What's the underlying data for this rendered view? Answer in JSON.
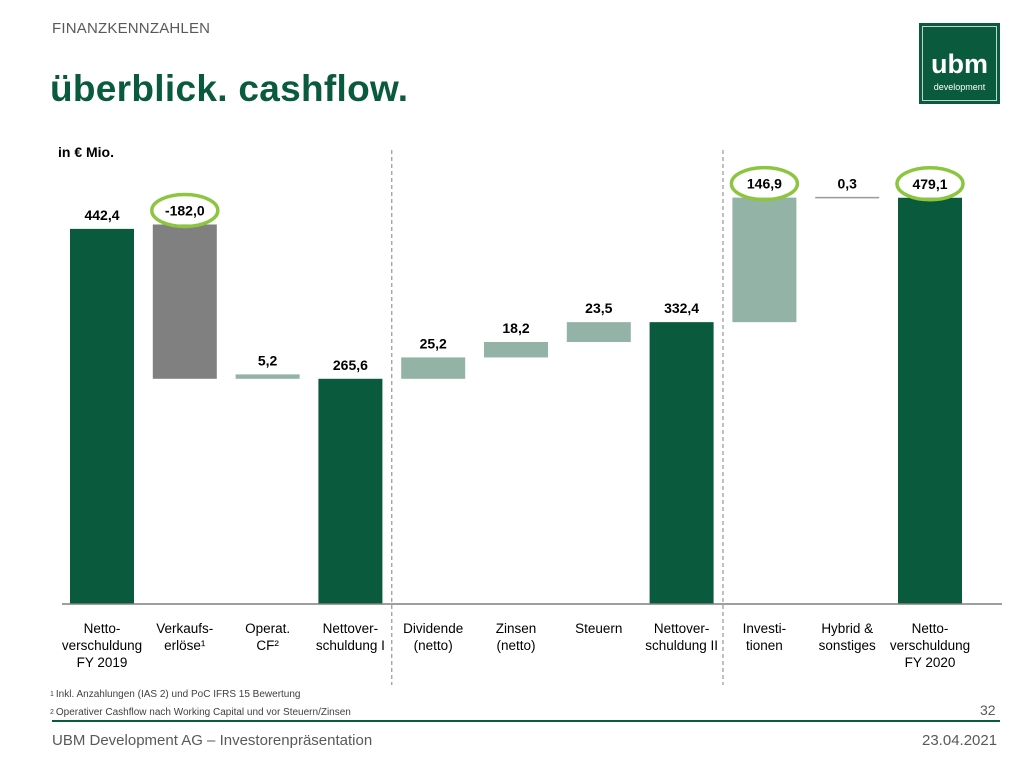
{
  "header": {
    "section_label": "FINANZKENNZAHLEN",
    "title": "überblick. cashflow."
  },
  "logo": {
    "main": "ubm",
    "sub": "development"
  },
  "colors": {
    "brand_green": "#0a5a3e",
    "light_green": "#92b3a6",
    "grey": "#808080",
    "highlight_ring": "#8cc63f",
    "axis": "#7f7f7f",
    "divider": "#808080"
  },
  "chart_data": {
    "type": "bar",
    "subtype": "waterfall",
    "unit": "in € Mio.",
    "ylim": [
      0,
      480
    ],
    "grid": false,
    "legend": "none",
    "group_dividers_after": [
      3,
      7
    ],
    "bars": [
      {
        "category": [
          "Netto-",
          "verschuldung",
          "FY 2019"
        ],
        "label": "442,4",
        "low": 0,
        "high": 442.4,
        "kind": "total",
        "highlight": false
      },
      {
        "category": [
          "Verkaufs-",
          "erlöse¹"
        ],
        "label": "-182,0",
        "low": 265.6,
        "high": 447.6,
        "kind": "negative",
        "highlight": true
      },
      {
        "category": [
          "Operat.",
          "CF²"
        ],
        "label": "5,2",
        "low": 265.6,
        "high": 270.8,
        "kind": "change",
        "highlight": false
      },
      {
        "category": [
          "Nettover-",
          "schuldung I"
        ],
        "label": "265,6",
        "low": 0,
        "high": 265.6,
        "kind": "total",
        "highlight": false
      },
      {
        "category": [
          "Dividende",
          "(netto)"
        ],
        "label": "25,2",
        "low": 265.6,
        "high": 290.8,
        "kind": "change",
        "highlight": false
      },
      {
        "category": [
          "Zinsen",
          "(netto)"
        ],
        "label": "18,2",
        "low": 290.8,
        "high": 309.0,
        "kind": "change",
        "highlight": false
      },
      {
        "category": [
          "Steuern"
        ],
        "label": "23,5",
        "low": 309.0,
        "high": 332.4,
        "kind": "change",
        "highlight": false
      },
      {
        "category": [
          "Nettover-",
          "schuldung II"
        ],
        "label": "332,4",
        "low": 0,
        "high": 332.4,
        "kind": "total",
        "highlight": false
      },
      {
        "category": [
          "Investi-",
          "tionen"
        ],
        "label": "146,9",
        "low": 332.4,
        "high": 479.3,
        "kind": "change",
        "highlight": true
      },
      {
        "category": [
          "Hybrid &",
          "sonstiges"
        ],
        "label": "0,3",
        "low": 479.1,
        "high": 479.3,
        "kind": "change",
        "highlight": false
      },
      {
        "category": [
          "Netto-",
          "verschuldung",
          "FY 2020"
        ],
        "label": "479,1",
        "low": 0,
        "high": 479.1,
        "kind": "total",
        "highlight": true
      }
    ]
  },
  "footnotes": {
    "n1_marker": "1",
    "n1_text": "Inkl. Anzahlungen (IAS 2) und PoC IFRS 15 Bewertung",
    "n2_marker": "2",
    "n2_text": "Operativer Cashflow nach Working Capital und vor Steuern/Zinsen"
  },
  "footer": {
    "company": "UBM Development AG – Investorenpräsentation",
    "date": "23.04.2021",
    "page_number": "32"
  }
}
